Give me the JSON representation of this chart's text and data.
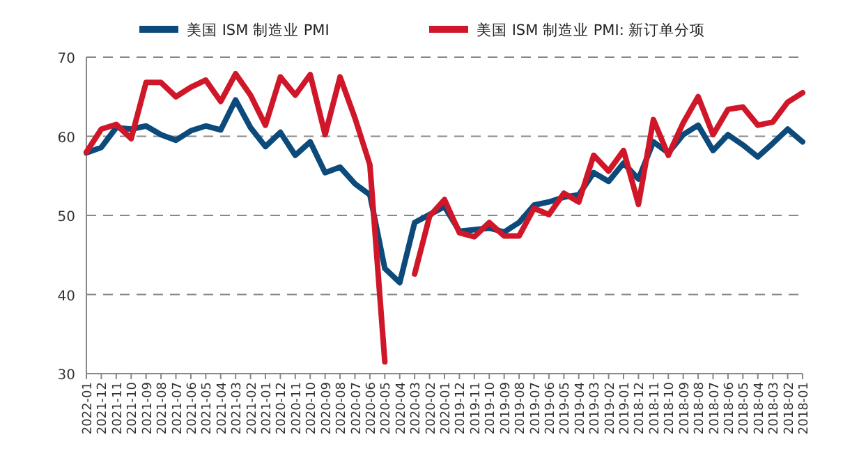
{
  "chart_data": {
    "type": "line",
    "categories": [
      "2022-01",
      "2021-12",
      "2021-11",
      "2021-10",
      "2021-09",
      "2021-08",
      "2021-07",
      "2021-06",
      "2021-05",
      "2021-04",
      "2021-03",
      "2021-02",
      "2021-01",
      "2020-12",
      "2020-11",
      "2020-10",
      "2020-09",
      "2020-08",
      "2020-07",
      "2020-06",
      "2020-05",
      "2020-04",
      "2020-03",
      "2020-02",
      "2020-01",
      "2019-12",
      "2019-11",
      "2019-10",
      "2019-09",
      "2019-08",
      "2019-07",
      "2019-06",
      "2019-05",
      "2019-04",
      "2019-03",
      "2019-02",
      "2019-01",
      "2018-12",
      "2018-11",
      "2018-10",
      "2018-09",
      "2018-08",
      "2018-07",
      "2018-06",
      "2018-05",
      "2018-04",
      "2018-03",
      "2018-02",
      "2018-01"
    ],
    "series": [
      {
        "name": "美国 ISM 制造业 PMI",
        "color": "#0b4a7a",
        "values": [
          57.9,
          58.6,
          61.1,
          60.9,
          61.3,
          60.2,
          59.5,
          60.7,
          61.3,
          60.8,
          64.6,
          61.1,
          58.7,
          60.5,
          57.6,
          59.3,
          55.4,
          56.1,
          54.0,
          52.6,
          43.3,
          41.5,
          49.1,
          50.1,
          51.1,
          48.0,
          48.2,
          48.4,
          47.9,
          49.1,
          51.3,
          51.7,
          52.3,
          52.6,
          55.4,
          54.3,
          56.6,
          54.6,
          59.3,
          57.9,
          60.2,
          61.4,
          58.2,
          60.2,
          58.9,
          57.4,
          59.1,
          60.9,
          59.3
        ]
      },
      {
        "name": "美国 ISM 制造业 PMI: 新订单分项",
        "color": "#d0172a",
        "values": [
          58.0,
          60.9,
          61.5,
          59.7,
          66.8,
          66.8,
          65.0,
          66.2,
          67.1,
          64.4,
          67.9,
          65.2,
          61.4,
          67.5,
          65.2,
          67.8,
          60.2,
          67.5,
          62.3,
          56.4,
          31.5,
          null,
          42.6,
          49.9,
          52.0,
          47.8,
          47.3,
          49.1,
          47.4,
          47.4,
          50.9,
          50.1,
          52.8,
          51.7,
          57.6,
          55.6,
          58.2,
          51.4,
          62.1,
          57.6,
          61.7,
          65.0,
          60.2,
          63.4,
          63.7,
          61.4,
          61.8,
          64.3,
          65.5
        ]
      }
    ],
    "ylim": [
      30,
      70
    ],
    "yticks": [
      30,
      40,
      50,
      60,
      70
    ],
    "grid": "y",
    "legend": "top",
    "marker": "none",
    "line_style": "solid"
  }
}
